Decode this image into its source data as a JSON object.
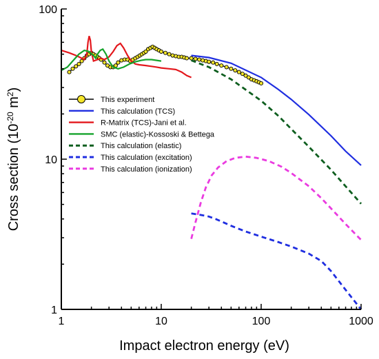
{
  "chart_data": {
    "type": "line",
    "xlabel": "Impact electron energy (eV)",
    "ylabel_main": "Cross section (10",
    "ylabel_sup": "-20",
    "ylabel_tail": " m",
    "ylabel_sup2": "2",
    "ylabel_close": ")",
    "x_scale": "log",
    "y_scale": "log",
    "xlim": [
      1,
      1000
    ],
    "ylim": [
      1,
      100
    ],
    "x_ticks": [
      {
        "v": 1,
        "label": "1"
      },
      {
        "v": 10,
        "label": "10"
      },
      {
        "v": 100,
        "label": "100"
      },
      {
        "v": 1000,
        "label": "1000"
      }
    ],
    "y_ticks": [
      {
        "v": 1,
        "label": "1"
      },
      {
        "v": 10,
        "label": "10"
      },
      {
        "v": 100,
        "label": "100"
      }
    ],
    "legend_position": "left-middle",
    "series": [
      {
        "name": "This experiment",
        "color": "#000000",
        "marker_fill": "#f5e62a",
        "style": "experiment",
        "points": [
          [
            1.2,
            38
          ],
          [
            1.3,
            40
          ],
          [
            1.4,
            41.5
          ],
          [
            1.5,
            43
          ],
          [
            1.6,
            45
          ],
          [
            1.7,
            47
          ],
          [
            1.8,
            49
          ],
          [
            1.9,
            50
          ],
          [
            2.0,
            51
          ],
          [
            2.1,
            50
          ],
          [
            2.2,
            49
          ],
          [
            2.3,
            48
          ],
          [
            2.4,
            47
          ],
          [
            2.5,
            46
          ],
          [
            2.7,
            44
          ],
          [
            2.9,
            42
          ],
          [
            3.1,
            41
          ],
          [
            3.3,
            41
          ],
          [
            3.5,
            42
          ],
          [
            3.7,
            44
          ],
          [
            4.0,
            45.5
          ],
          [
            4.3,
            46
          ],
          [
            4.6,
            46
          ],
          [
            4.9,
            45
          ],
          [
            5.2,
            46
          ],
          [
            5.5,
            47
          ],
          [
            5.8,
            48
          ],
          [
            6.1,
            49
          ],
          [
            6.4,
            50
          ],
          [
            6.7,
            51
          ],
          [
            7.0,
            52
          ],
          [
            7.4,
            54
          ],
          [
            7.8,
            55
          ],
          [
            8.2,
            56
          ],
          [
            8.6,
            55
          ],
          [
            9.0,
            54
          ],
          [
            9.5,
            53
          ],
          [
            10,
            52
          ],
          [
            11,
            51
          ],
          [
            12,
            50
          ],
          [
            13,
            49
          ],
          [
            14,
            48.5
          ],
          [
            15,
            48
          ],
          [
            16,
            48
          ],
          [
            17,
            47.5
          ],
          [
            18,
            47
          ],
          [
            20,
            47
          ],
          [
            22,
            46.5
          ],
          [
            24,
            46
          ],
          [
            26,
            45.5
          ],
          [
            28,
            45
          ],
          [
            30,
            44.5
          ],
          [
            33,
            44
          ],
          [
            36,
            43
          ],
          [
            40,
            42
          ],
          [
            45,
            41
          ],
          [
            50,
            40
          ],
          [
            55,
            39
          ],
          [
            60,
            38
          ],
          [
            65,
            37
          ],
          [
            70,
            36
          ],
          [
            75,
            35
          ],
          [
            80,
            34
          ],
          [
            85,
            33.5
          ],
          [
            90,
            33
          ],
          [
            95,
            32.5
          ],
          [
            100,
            32
          ]
        ]
      },
      {
        "name": "This calculation (TCS)",
        "color": "#1f2ee0",
        "style": "solid",
        "points": [
          [
            20,
            49
          ],
          [
            30,
            47.5
          ],
          [
            50,
            43.5
          ],
          [
            100,
            35
          ],
          [
            150,
            29
          ],
          [
            200,
            25
          ],
          [
            300,
            19.8
          ],
          [
            500,
            14.3
          ],
          [
            700,
            11.3
          ],
          [
            1000,
            9.1
          ]
        ]
      },
      {
        "name": "R-Matrix (TCS)-Jani et al.",
        "color": "#e3171c",
        "style": "solid",
        "points": [
          [
            1,
            53
          ],
          [
            1.2,
            51
          ],
          [
            1.4,
            49
          ],
          [
            1.6,
            47
          ],
          [
            1.7,
            46
          ],
          [
            1.8,
            50
          ],
          [
            1.85,
            60
          ],
          [
            1.9,
            66
          ],
          [
            1.95,
            62
          ],
          [
            2.0,
            52
          ],
          [
            2.1,
            45
          ],
          [
            2.3,
            46
          ],
          [
            2.5,
            47
          ],
          [
            2.7,
            46
          ],
          [
            3.0,
            48
          ],
          [
            3.3,
            52
          ],
          [
            3.6,
            57
          ],
          [
            3.9,
            59
          ],
          [
            4.2,
            55
          ],
          [
            4.6,
            49
          ],
          [
            5.0,
            45
          ],
          [
            5.5,
            43
          ],
          [
            6,
            42.5
          ],
          [
            7,
            42
          ],
          [
            8,
            41.5
          ],
          [
            9,
            41
          ],
          [
            10,
            40.5
          ],
          [
            12,
            40
          ],
          [
            14,
            39.5
          ],
          [
            16,
            38
          ],
          [
            18,
            36
          ],
          [
            20,
            35
          ]
        ]
      },
      {
        "name": "SMC (elastic)-Kossoski & Bettega",
        "color": "#15a32b",
        "style": "solid",
        "points": [
          [
            1,
            39
          ],
          [
            1.15,
            41
          ],
          [
            1.3,
            45
          ],
          [
            1.5,
            50
          ],
          [
            1.7,
            53
          ],
          [
            1.9,
            52
          ],
          [
            2.1,
            49
          ],
          [
            2.2,
            47
          ],
          [
            2.3,
            50
          ],
          [
            2.45,
            53
          ],
          [
            2.6,
            54
          ],
          [
            2.8,
            50
          ],
          [
            3.0,
            45
          ],
          [
            3.3,
            41
          ],
          [
            3.7,
            40
          ],
          [
            4.2,
            41
          ],
          [
            4.8,
            43
          ],
          [
            5.5,
            44.5
          ],
          [
            6.3,
            45.5
          ],
          [
            7.0,
            46
          ],
          [
            8,
            46
          ],
          [
            9,
            45.5
          ],
          [
            10,
            45
          ]
        ]
      },
      {
        "name": "This calculation (elastic)",
        "color": "#0e5e1f",
        "style": "dashed",
        "points": [
          [
            20,
            45.5
          ],
          [
            30,
            41
          ],
          [
            50,
            34
          ],
          [
            100,
            24.5
          ],
          [
            150,
            19.3
          ],
          [
            200,
            15.9
          ],
          [
            300,
            12.1
          ],
          [
            500,
            8.5
          ],
          [
            700,
            6.6
          ],
          [
            1000,
            5.05
          ]
        ]
      },
      {
        "name": "This calculation (excitation)",
        "color": "#1f2ee0",
        "style": "dashed",
        "points": [
          [
            20,
            4.35
          ],
          [
            25,
            4.25
          ],
          [
            30,
            4.15
          ],
          [
            35,
            4.0
          ],
          [
            40,
            3.85
          ],
          [
            50,
            3.6
          ],
          [
            70,
            3.3
          ],
          [
            100,
            3.05
          ],
          [
            150,
            2.8
          ],
          [
            200,
            2.62
          ],
          [
            300,
            2.35
          ],
          [
            400,
            2.1
          ],
          [
            500,
            1.8
          ],
          [
            700,
            1.35
          ],
          [
            1000,
            1.0
          ]
        ]
      },
      {
        "name": "This calculation (ionization)",
        "color": "#ea3be0",
        "style": "dashed",
        "points": [
          [
            20,
            2.95
          ],
          [
            22,
            3.8
          ],
          [
            25,
            5.2
          ],
          [
            28,
            6.5
          ],
          [
            32,
            7.8
          ],
          [
            37,
            8.8
          ],
          [
            45,
            9.7
          ],
          [
            55,
            10.2
          ],
          [
            70,
            10.4
          ],
          [
            90,
            10.2
          ],
          [
            120,
            9.7
          ],
          [
            160,
            8.9
          ],
          [
            200,
            8.1
          ],
          [
            300,
            6.6
          ],
          [
            400,
            5.5
          ],
          [
            500,
            4.7
          ],
          [
            700,
            3.7
          ],
          [
            1000,
            2.9
          ]
        ]
      }
    ]
  }
}
